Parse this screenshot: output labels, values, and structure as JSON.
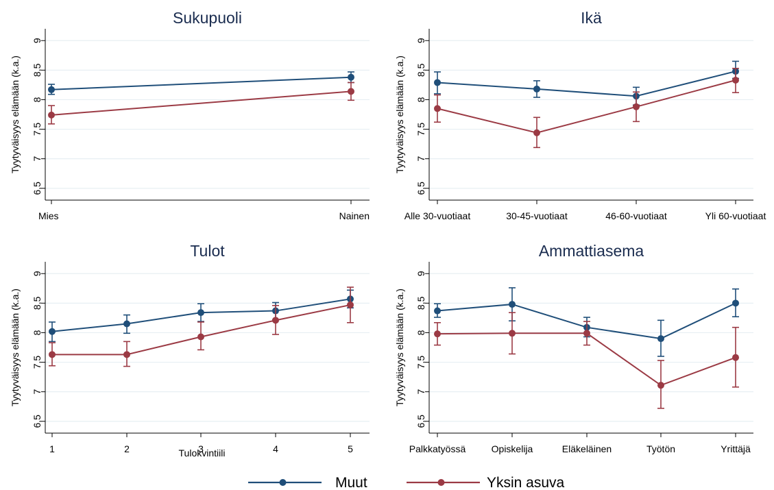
{
  "colors": {
    "muut": "#1f4e79",
    "yksin": "#9b3a44",
    "grid": "#e7eff3",
    "axis": "#000000",
    "title": "#1a2c4f"
  },
  "legend": {
    "position": "bottom",
    "items": [
      "Muut",
      "Yksin asuva"
    ]
  },
  "chart_data": [
    {
      "type": "line",
      "title": "Sukupuoli",
      "xlabel": "",
      "ylabel": "Tyytyväisyys elämään (k.a.)",
      "ylim": [
        6.3,
        9.2
      ],
      "yticks": [
        6.5,
        7,
        7.5,
        8,
        8.5,
        9
      ],
      "ytick_labels": [
        "6,5",
        "7",
        "7,5",
        "8",
        "8,5",
        "9"
      ],
      "grid": true,
      "categories": [
        "Mies",
        "Nainen"
      ],
      "series": [
        {
          "name": "Muut",
          "values": [
            8.17,
            8.38
          ],
          "lower": [
            8.09,
            8.29
          ],
          "upper": [
            8.26,
            8.47
          ]
        },
        {
          "name": "Yksin asuva",
          "values": [
            7.74,
            8.14
          ],
          "lower": [
            7.59,
            7.99
          ],
          "upper": [
            7.9,
            8.29
          ]
        }
      ]
    },
    {
      "type": "line",
      "title": "Ikä",
      "xlabel": "",
      "ylabel": "Tyytyväisyys elämään (k.a.)",
      "ylim": [
        6.3,
        9.2
      ],
      "yticks": [
        6.5,
        7,
        7.5,
        8,
        8.5,
        9
      ],
      "ytick_labels": [
        "6,5",
        "7",
        "7,5",
        "8",
        "8,5",
        "9"
      ],
      "grid": true,
      "categories": [
        "Alle 30-vuotiaat",
        "30-45-vuotiaat",
        "46-60-vuotiaat",
        "Yli 60-vuotiaat"
      ],
      "series": [
        {
          "name": "Muut",
          "values": [
            8.29,
            8.18,
            8.06,
            8.48
          ],
          "lower": [
            8.1,
            8.04,
            7.91,
            8.36
          ],
          "upper": [
            8.47,
            8.32,
            8.21,
            8.65
          ]
        },
        {
          "name": "Yksin asuva",
          "values": [
            7.85,
            7.44,
            7.88,
            8.33
          ],
          "lower": [
            7.62,
            7.19,
            7.63,
            8.12
          ],
          "upper": [
            8.08,
            7.7,
            8.13,
            8.53
          ]
        }
      ]
    },
    {
      "type": "line",
      "title": "Tulot",
      "xlabel": "Tulokvintiili",
      "ylabel": "Tyytyväisyys elämään (k.a.)",
      "ylim": [
        6.3,
        9.2
      ],
      "yticks": [
        6.5,
        7,
        7.5,
        8,
        8.5,
        9
      ],
      "ytick_labels": [
        "6,5",
        "7",
        "7,5",
        "8",
        "8,5",
        "9"
      ],
      "grid": true,
      "categories": [
        "1",
        "2",
        "3",
        "4",
        "5"
      ],
      "series": [
        {
          "name": "Muut",
          "values": [
            8.02,
            8.15,
            8.34,
            8.37,
            8.57
          ],
          "lower": [
            7.85,
            7.99,
            8.19,
            8.22,
            8.42
          ],
          "upper": [
            8.18,
            8.3,
            8.49,
            8.51,
            8.72
          ]
        },
        {
          "name": "Yksin asuva",
          "values": [
            7.63,
            7.63,
            7.93,
            8.21,
            8.47
          ],
          "lower": [
            7.44,
            7.43,
            7.71,
            7.97,
            8.17
          ],
          "upper": [
            7.83,
            7.85,
            8.18,
            8.46,
            8.77
          ]
        }
      ]
    },
    {
      "type": "line",
      "title": "Ammattiasema",
      "xlabel": "",
      "ylabel": "Tyytyväisyys elämään (k.a.)",
      "ylim": [
        6.3,
        9.2
      ],
      "yticks": [
        6.5,
        7,
        7.5,
        8,
        8.5,
        9
      ],
      "ytick_labels": [
        "6,5",
        "7",
        "7,5",
        "8",
        "8,5",
        "9"
      ],
      "grid": true,
      "categories": [
        "Palkkatyössä",
        "Opiskelija",
        "Eläkeläinen",
        "Työtön",
        "Yrittäjä"
      ],
      "series": [
        {
          "name": "Muut",
          "values": [
            8.37,
            8.48,
            8.09,
            7.9,
            8.5
          ],
          "lower": [
            8.26,
            8.2,
            7.93,
            7.6,
            8.27
          ],
          "upper": [
            8.49,
            8.76,
            8.26,
            8.21,
            8.74
          ]
        },
        {
          "name": "Yksin asuva",
          "values": [
            7.98,
            7.99,
            7.99,
            7.11,
            7.58
          ],
          "lower": [
            7.79,
            7.64,
            7.79,
            6.72,
            7.08
          ],
          "upper": [
            8.17,
            8.34,
            8.19,
            7.53,
            8.09
          ]
        }
      ]
    }
  ]
}
